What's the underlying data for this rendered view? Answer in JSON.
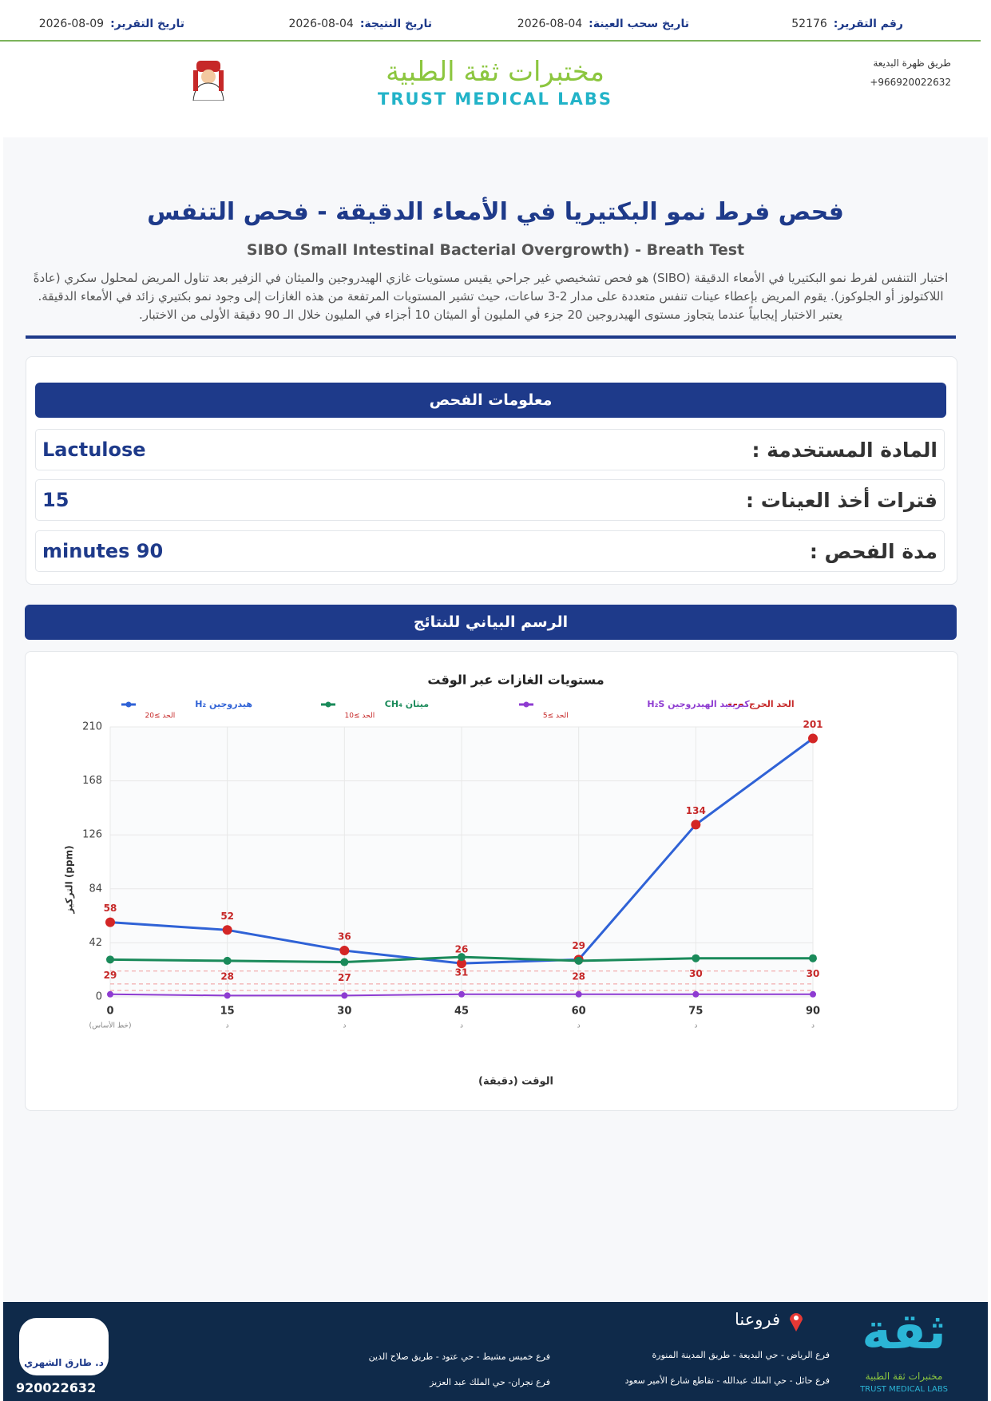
{
  "header": {
    "report_no_label": "رقم التقرير:",
    "report_no": "52176",
    "sample_date_label": "تاريخ سحب العينة:",
    "sample_date": "2026-08-04",
    "result_date_label": "تاريخ النتيجة:",
    "result_date": "2026-08-04",
    "report_date_label": "تاريخ التقرير:",
    "report_date": "2026-08-09"
  },
  "lab": {
    "address": "طريق ظهرة البديعة",
    "phone": "+966920022632",
    "name_ar": "مختبرات ثقة الطبية",
    "name_en": "TRUST MEDICAL LABS"
  },
  "title_ar": "فحص فرط نمو البكتيريا في الأمعاء الدقيقة - فحص التنفس",
  "title_en": "SIBO (Small Intestinal Bacterial Overgrowth) - Breath Test",
  "description": "اختبار التنفس لفرط نمو البكتيريا في الأمعاء الدقيقة (SIBO) هو فحص تشخيصي غير جراحي يقيس مستويات غازي الهيدروجين والميثان في الزفير بعد تناول المريض لمحلول سكري (عادةً اللاكتولوز أو الجلوكوز). يقوم المريض بإعطاء عينات تنفس متعددة على مدار 2-3 ساعات، حيث تشير المستويات المرتفعة من هذه الغازات إلى وجود نمو بكتيري زائد في الأمعاء الدقيقة. يعتبر الاختبار إيجابياً عندما يتجاوز مستوى الهيدروجين 20 جزء في المليون أو الميثان 10 أجزاء في المليون خلال الـ 90 دقيقة الأولى من الاختبار.",
  "info": {
    "heading": "معلومات الفحص",
    "rows": [
      {
        "label": "المادة المستخدمة :",
        "value": "Lactulose"
      },
      {
        "label": "فترات أخذ العينات :",
        "value": "15"
      },
      {
        "label": "مدة الفحص :",
        "value": "minutes 90"
      }
    ]
  },
  "chart_heading": "الرسم البياني للنتائج",
  "chart_data": {
    "type": "line",
    "title": "مستويات الغازات عبر الوقت",
    "x_label": "الوقت (دقيقة)",
    "y_label": "التركيز (ppm)",
    "x": [
      0,
      15,
      30,
      45,
      60,
      75,
      90
    ],
    "xlim": [
      0,
      90
    ],
    "xticks": [
      0,
      15,
      30,
      45,
      60,
      75,
      90
    ],
    "x_tick_notes": [
      "(خط الأساس)",
      "د",
      "د",
      "د",
      "د",
      "د",
      "د"
    ],
    "ylim": [
      0,
      210
    ],
    "yticks": [
      0,
      42,
      84,
      126,
      168,
      210
    ],
    "grid": true,
    "series": [
      {
        "name": "هيدروجين H₂",
        "color": "#2f62d6",
        "marker_color": "#d32626",
        "values": [
          58,
          52,
          36,
          26,
          29,
          134,
          201
        ],
        "threshold": 20,
        "threshold_label": "الحد ≥20",
        "labels_position": "above"
      },
      {
        "name": "ميثان CH₄",
        "color": "#1a8a5a",
        "marker_color": "#1a8a5a",
        "values": [
          29,
          28,
          27,
          31,
          28,
          30,
          30
        ],
        "threshold": 10,
        "threshold_label": "الحد ≥10",
        "labels_position": "below"
      },
      {
        "name": "كبريتيد الهيدروجين H₂S",
        "color": "#8e3bd1",
        "marker_color": "#8e3bd1",
        "values": [
          2,
          1,
          1,
          2,
          2,
          2,
          2
        ],
        "threshold": 5,
        "threshold_label": "الحد ≥5",
        "labels_position": "none"
      }
    ],
    "threshold_legend": "الحد الحرج",
    "threshold_color": "#f09a9a",
    "label_color": "#c62828"
  },
  "footer": {
    "branches_heading": "فروعنا",
    "branches": [
      "فرع الرياض - حي البديعة - طريق المدينة المنورة",
      "فرع حائل - حي الملك عبدالله - تقاطع شارع الأمير سعود",
      "فرع خميس مشيط - حي عتود - طريق صلاح الدين",
      "فرع نجران- حي الملك عبد العزيز"
    ],
    "doctor": "د. طارق الشهري",
    "phone": "920022632",
    "logo_ar": "ثقة",
    "logo_sub": "مختبرات ثقة الطبية",
    "logo_en": "TRUST MEDICAL LABS"
  }
}
